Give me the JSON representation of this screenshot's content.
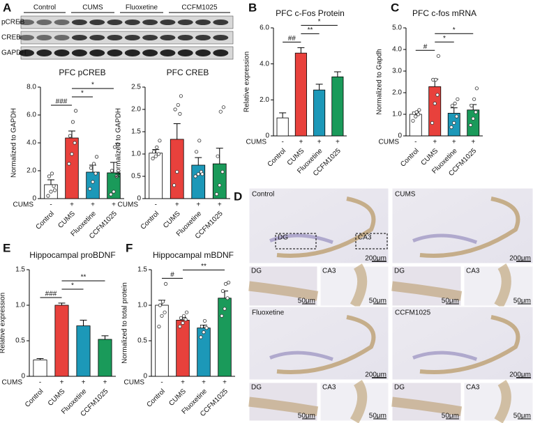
{
  "panels": {
    "letters": [
      "A",
      "B",
      "C",
      "D",
      "E",
      "F"
    ]
  },
  "blot": {
    "groups": [
      "Control",
      "CUMS",
      "Fluoxetine",
      "CCFM1025"
    ],
    "rows": [
      "pCREB",
      "CREB",
      "GAPDH"
    ]
  },
  "histology": {
    "roi_labels": [
      "DG",
      "CA3"
    ],
    "panels": [
      {
        "group": "Control",
        "scale": "200μm",
        "insets": [
          {
            "label": "DG",
            "scale": "50μm"
          },
          {
            "label": "CA3",
            "scale": "50μm"
          }
        ]
      },
      {
        "group": "CUMS",
        "scale": "200μm",
        "insets": [
          {
            "label": "DG",
            "scale": "50μm"
          },
          {
            "label": "CA3",
            "scale": "50μm"
          }
        ]
      },
      {
        "group": "Fluoxetine",
        "scale": "200μm",
        "insets": [
          {
            "label": "DG",
            "scale": "50μm"
          },
          {
            "label": "CA3",
            "scale": "50μm"
          }
        ]
      },
      {
        "group": "CCFM1025",
        "scale": "200μm",
        "insets": [
          {
            "label": "DG",
            "scale": "50μm"
          },
          {
            "label": "CA3",
            "scale": "50μm"
          }
        ]
      }
    ]
  },
  "chart_data": [
    {
      "type": "bar",
      "title": "PFC pCREB",
      "y_label": "Normalized to GAPDH",
      "categories": [
        "Control",
        "CUMS",
        "Fluoxetine",
        "CCFM1025"
      ],
      "colors": [
        "#ffffff",
        "#e8413c",
        "#1c98b8",
        "#1a9a5a"
      ],
      "values": [
        1.0,
        4.35,
        1.9,
        1.85
      ],
      "errors": [
        0.35,
        0.5,
        0.5,
        0.75
      ],
      "points": [
        [
          0.2,
          0.5,
          0.9,
          1.6,
          1.8,
          0.6
        ],
        [
          2.5,
          3.2,
          4.0,
          4.5,
          5.5,
          6.3
        ],
        [
          0.7,
          1.2,
          1.8,
          2.2,
          2.5,
          3.0
        ],
        [
          0.3,
          0.5,
          1.6,
          2.0,
          3.7,
          3.9
        ]
      ],
      "ylim": [
        0,
        8
      ],
      "yticks": [
        0,
        {
          "value": 2,
          "label": "2.0"
        },
        {
          "value": 4,
          "label": "4.0"
        },
        {
          "value": 6,
          "label": "6.0"
        },
        {
          "value": 8,
          "label": "8.0"
        }
      ],
      "cums_label": "CUMS",
      "cums_signs": [
        "-",
        "+",
        "+",
        "+"
      ],
      "annotations": [
        {
          "text": "###",
          "between": [
            "Control",
            "CUMS"
          ]
        },
        {
          "text": "*",
          "between": [
            "CUMS",
            "Fluoxetine"
          ]
        },
        {
          "text": "*",
          "between": [
            "CUMS",
            "CCFM1025"
          ]
        }
      ]
    },
    {
      "type": "bar",
      "title": "PFC CREB",
      "y_label": "Normalized to GAPDH",
      "categories": [
        "Control",
        "CUMS",
        "Fluoxetine",
        "CCFM1025"
      ],
      "colors": [
        "#ffffff",
        "#e8413c",
        "#1c98b8",
        "#1a9a5a"
      ],
      "values": [
        1.02,
        1.33,
        0.75,
        0.78
      ],
      "errors": [
        0.08,
        0.35,
        0.17,
        0.35
      ],
      "points": [
        [
          0.9,
          0.95,
          1.0,
          1.05,
          1.15,
          1.3
        ],
        [
          0.3,
          0.6,
          1.9,
          2.0,
          2.1,
          2.3
        ],
        [
          0.5,
          0.55,
          0.6,
          1.05,
          1.3,
          0.55
        ],
        [
          0.1,
          0.3,
          0.6,
          0.95,
          1.95,
          2.05
        ]
      ],
      "ylim": [
        0,
        2.5
      ],
      "yticks": [
        0,
        0.5,
        {
          "value": 1,
          "label": "1.0"
        },
        1.5,
        {
          "value": 2,
          "label": "2.0"
        },
        2.5
      ],
      "cums_label": "CUMS",
      "cums_signs": [
        "-",
        "+",
        "+",
        "+"
      ],
      "annotations": []
    },
    {
      "type": "bar",
      "title": "PFC c-Fos Protein",
      "y_label": "Relative expression",
      "categories": [
        "Control",
        "CUMS",
        "Fluoxetine",
        "CCFM1025"
      ],
      "colors": [
        "#ffffff",
        "#e8413c",
        "#1c98b8",
        "#1a9a5a"
      ],
      "values": [
        1.0,
        4.6,
        2.55,
        3.28
      ],
      "errors": [
        0.28,
        0.3,
        0.32,
        0.28
      ],
      "ylim": [
        0,
        6
      ],
      "yticks": [
        0,
        {
          "value": 2,
          "label": "2.0"
        },
        {
          "value": 4,
          "label": "4.0"
        },
        {
          "value": 6,
          "label": "6.0"
        }
      ],
      "cums_label": "CUMS",
      "cums_signs": [
        "-",
        "+",
        "+",
        "+"
      ],
      "annotations": [
        {
          "text": "##",
          "between": [
            "Control",
            "CUMS"
          ]
        },
        {
          "text": "**",
          "between": [
            "CUMS",
            "Fluoxetine"
          ]
        },
        {
          "text": "*",
          "between": [
            "CUMS",
            "CCFM1025"
          ]
        }
      ]
    },
    {
      "type": "bar",
      "title": "PFC c-fos mRNA",
      "y_label": "Normalized to Gapdh",
      "categories": [
        "Control",
        "CUMS",
        "Fluoxetine",
        "CCFM1025"
      ],
      "colors": [
        "#ffffff",
        "#e8413c",
        "#1c98b8",
        "#1a9a5a"
      ],
      "values": [
        1.0,
        2.28,
        1.05,
        1.2
      ],
      "errors": [
        0.1,
        0.35,
        0.25,
        0.25
      ],
      "points": [
        [
          0.7,
          0.9,
          1.0,
          1.05,
          1.1,
          1.2
        ],
        [
          0.6,
          1.5,
          1.9,
          2.6,
          2.6,
          3.7
        ],
        [
          0.4,
          0.6,
          0.9,
          1.4,
          1.5,
          1.7
        ],
        [
          0.5,
          0.8,
          1.1,
          1.4,
          1.7,
          2.2
        ]
      ],
      "ylim": [
        0,
        5
      ],
      "yticks": [
        0,
        {
          "value": 1,
          "label": "1.0"
        },
        {
          "value": 2,
          "label": "2.0"
        },
        {
          "value": 3,
          "label": "3.0"
        },
        {
          "value": 4,
          "label": "4.0"
        },
        {
          "value": 5,
          "label": "5.0"
        }
      ],
      "cums_label": "CUMS",
      "cums_signs": [
        "-",
        "+",
        "+",
        "+"
      ],
      "annotations": [
        {
          "text": "#",
          "between": [
            "Control",
            "CUMS"
          ]
        },
        {
          "text": "*",
          "between": [
            "CUMS",
            "Fluoxetine"
          ]
        },
        {
          "text": "*",
          "between": [
            "CUMS",
            "CCFM1025"
          ]
        }
      ]
    },
    {
      "type": "bar",
      "title": "Hippocampal proBDNF",
      "y_label": "Relative expression",
      "categories": [
        "Control",
        "CUMS",
        "Fluoxetine",
        "CCFM1025"
      ],
      "colors": [
        "#ffffff",
        "#e8413c",
        "#1c98b8",
        "#1a9a5a"
      ],
      "values": [
        0.23,
        1.0,
        0.71,
        0.52
      ],
      "errors": [
        0.02,
        0.03,
        0.08,
        0.05
      ],
      "ylim": [
        0,
        1.5
      ],
      "yticks": [
        0,
        0.5,
        {
          "value": 1,
          "label": "1.0"
        },
        1.5
      ],
      "cums_label": "CUMS",
      "cums_signs": [
        "-",
        "+",
        "+",
        "+"
      ],
      "annotations": [
        {
          "text": "###",
          "between": [
            "Control",
            "CUMS"
          ]
        },
        {
          "text": "*",
          "between": [
            "CUMS",
            "Fluoxetine"
          ]
        },
        {
          "text": "**",
          "between": [
            "CUMS",
            "CCFM1025"
          ]
        }
      ]
    },
    {
      "type": "bar",
      "title": "Hippocampal mBDNF",
      "y_label": "Normalized to total protein",
      "categories": [
        "Control",
        "CUMS",
        "Fluoxetine",
        "CCFM1025"
      ],
      "colors": [
        "#ffffff",
        "#e8413c",
        "#1c98b8",
        "#1a9a5a"
      ],
      "values": [
        1.0,
        0.79,
        0.68,
        1.1
      ],
      "errors": [
        0.07,
        0.04,
        0.04,
        0.1
      ],
      "points": [
        [
          0.7,
          0.85,
          0.9,
          1.0,
          1.05,
          1.3
        ],
        [
          0.7,
          0.75,
          0.8,
          0.82,
          0.85,
          0.9
        ],
        [
          0.55,
          0.62,
          0.68,
          0.7,
          0.78
        ],
        [
          0.85,
          0.95,
          1.1,
          1.2,
          1.3,
          1.32
        ]
      ],
      "ylim": [
        0,
        1.5
      ],
      "yticks": [
        0,
        0.5,
        {
          "value": 1,
          "label": "1.0"
        },
        1.5
      ],
      "cums_label": "CUMS",
      "cums_signs": [
        "-",
        "+",
        "+",
        "+"
      ],
      "annotations": [
        {
          "text": "#",
          "between": [
            "Control",
            "CUMS"
          ]
        },
        {
          "text": "**",
          "between": [
            "CUMS",
            "CCFM1025"
          ]
        }
      ]
    }
  ]
}
